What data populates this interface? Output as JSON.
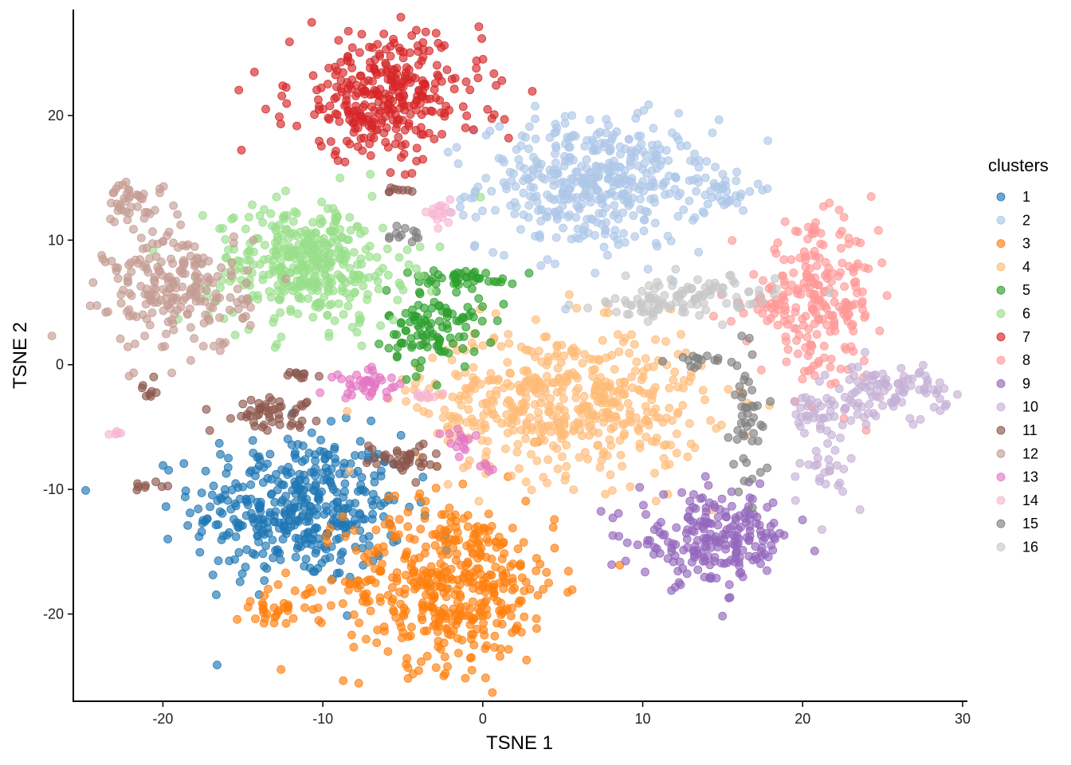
{
  "chart_data": {
    "type": "scatter",
    "xlabel": "TSNE 1",
    "ylabel": "TSNE 2",
    "xlim": [
      -25.6,
      30.3
    ],
    "ylim": [
      -27.0,
      28.5
    ],
    "x_ticks": [
      -20,
      -10,
      0,
      10,
      20,
      30
    ],
    "y_ticks": [
      -20,
      -10,
      0,
      10,
      20
    ],
    "grid": false,
    "legend": {
      "title": "clusters",
      "position": "right"
    },
    "point_alpha": 0.65,
    "series": [
      {
        "name": "1",
        "color": "#1f77b4",
        "blobs": [
          {
            "cx": -11.5,
            "cy": -11.5,
            "sx": 3.3,
            "sy": 3.0,
            "n": 420
          }
        ]
      },
      {
        "name": "2",
        "color": "#aec7e8",
        "blobs": [
          {
            "cx": 7.0,
            "cy": 14.5,
            "sx": 3.6,
            "sy": 2.6,
            "n": 430
          },
          {
            "cx": 15.0,
            "cy": 14.0,
            "sx": 1.0,
            "sy": 0.8,
            "n": 30
          }
        ]
      },
      {
        "name": "3",
        "color": "#ff7f0e",
        "blobs": [
          {
            "cx": -2.0,
            "cy": -17.5,
            "sx": 3.3,
            "sy": 3.3,
            "n": 460
          },
          {
            "cx": -13.0,
            "cy": -19.5,
            "sx": 1.2,
            "sy": 0.8,
            "n": 35
          }
        ]
      },
      {
        "name": "4",
        "color": "#ffbb78",
        "blobs": [
          {
            "cx": 5.0,
            "cy": -3.0,
            "sx": 4.5,
            "sy": 3.0,
            "n": 520
          }
        ]
      },
      {
        "name": "5",
        "color": "#2ca02c",
        "blobs": [
          {
            "cx": -3.0,
            "cy": 3.0,
            "sx": 1.5,
            "sy": 1.6,
            "n": 110
          },
          {
            "cx": -1.0,
            "cy": 7.0,
            "sx": 1.6,
            "sy": 0.3,
            "n": 40
          }
        ]
      },
      {
        "name": "6",
        "color": "#98df8a",
        "blobs": [
          {
            "cx": -11.0,
            "cy": 8.0,
            "sx": 3.0,
            "sy": 2.5,
            "n": 380
          }
        ]
      },
      {
        "name": "7",
        "color": "#d62728",
        "blobs": [
          {
            "cx": -6.0,
            "cy": 21.5,
            "sx": 3.0,
            "sy": 2.5,
            "n": 330
          }
        ]
      },
      {
        "name": "8",
        "color": "#ff9896",
        "blobs": [
          {
            "cx": 21.0,
            "cy": 5.0,
            "sx": 1.8,
            "sy": 3.0,
            "n": 220
          },
          {
            "cx": 17.5,
            "cy": 4.5,
            "sx": 1.5,
            "sy": 0.6,
            "n": 25
          }
        ]
      },
      {
        "name": "9",
        "color": "#9467bd",
        "blobs": [
          {
            "cx": 14.5,
            "cy": -14.0,
            "sx": 2.4,
            "sy": 1.8,
            "n": 220
          }
        ]
      },
      {
        "name": "10",
        "color": "#c5b0d5",
        "blobs": [
          {
            "cx": 25.5,
            "cy": -2.0,
            "sx": 1.8,
            "sy": 1.0,
            "n": 90
          },
          {
            "cx": 21.5,
            "cy": -4.0,
            "sx": 1.5,
            "sy": 1.0,
            "n": 45
          },
          {
            "cx": 21.5,
            "cy": -8.5,
            "sx": 0.8,
            "sy": 1.5,
            "n": 25
          }
        ]
      },
      {
        "name": "11",
        "color": "#8c564b",
        "blobs": [
          {
            "cx": -13.5,
            "cy": -3.8,
            "sx": 1.5,
            "sy": 0.6,
            "n": 50
          },
          {
            "cx": -5.0,
            "cy": -7.5,
            "sx": 1.2,
            "sy": 0.6,
            "n": 40
          },
          {
            "cx": -11.5,
            "cy": -0.7,
            "sx": 0.5,
            "sy": 0.2,
            "n": 10
          },
          {
            "cx": -21.0,
            "cy": -2.0,
            "sx": 0.3,
            "sy": 0.6,
            "n": 8
          },
          {
            "cx": -21.0,
            "cy": -9.8,
            "sx": 0.5,
            "sy": 0.3,
            "n": 8
          },
          {
            "cx": -5.0,
            "cy": 14.0,
            "sx": 0.4,
            "sy": 0.15,
            "n": 8
          }
        ]
      },
      {
        "name": "12",
        "color": "#c49c94",
        "blobs": [
          {
            "cx": -19.0,
            "cy": 6.0,
            "sx": 2.2,
            "sy": 2.5,
            "n": 220
          },
          {
            "cx": -22.0,
            "cy": 13.0,
            "sx": 1.0,
            "sy": 0.8,
            "n": 40
          }
        ]
      },
      {
        "name": "13",
        "color": "#e377c2",
        "blobs": [
          {
            "cx": -7.0,
            "cy": -1.5,
            "sx": 1.2,
            "sy": 0.6,
            "n": 40
          },
          {
            "cx": -1.5,
            "cy": -6.0,
            "sx": 0.6,
            "sy": 0.6,
            "n": 15
          },
          {
            "cx": 0.0,
            "cy": -8.3,
            "sx": 0.3,
            "sy": 0.2,
            "n": 5
          }
        ]
      },
      {
        "name": "14",
        "color": "#f7b6d2",
        "blobs": [
          {
            "cx": -2.5,
            "cy": 12.0,
            "sx": 0.5,
            "sy": 0.6,
            "n": 15
          },
          {
            "cx": -3.5,
            "cy": -2.5,
            "sx": 0.5,
            "sy": 0.15,
            "n": 10
          },
          {
            "cx": -23.0,
            "cy": -5.5,
            "sx": 0.3,
            "sy": 0.1,
            "n": 5
          }
        ]
      },
      {
        "name": "15",
        "color": "#7f7f7f",
        "blobs": [
          {
            "cx": -5.0,
            "cy": 10.3,
            "sx": 0.6,
            "sy": 0.3,
            "n": 12
          },
          {
            "cx": 13.5,
            "cy": 0.3,
            "sx": 1.0,
            "sy": 0.3,
            "n": 15
          },
          {
            "cx": 16.5,
            "cy": -4.5,
            "sx": 0.5,
            "sy": 2.8,
            "n": 45
          }
        ]
      },
      {
        "name": "16",
        "color": "#c7c7c7",
        "blobs": [
          {
            "cx": 13.5,
            "cy": 5.5,
            "sx": 2.5,
            "sy": 0.8,
            "n": 80
          },
          {
            "cx": 10.0,
            "cy": 4.7,
            "sx": 1.5,
            "sy": 0.4,
            "n": 30
          }
        ]
      }
    ]
  }
}
